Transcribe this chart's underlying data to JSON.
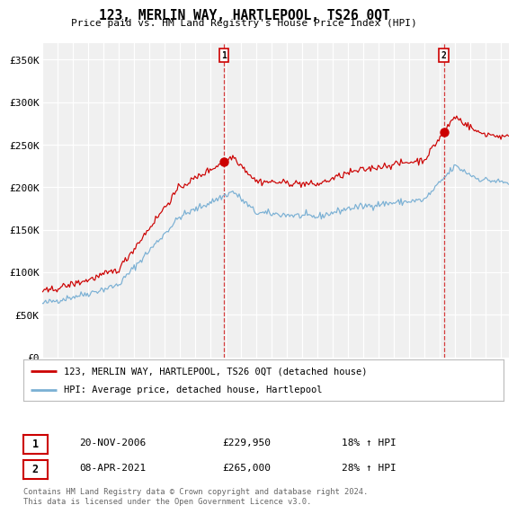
{
  "title": "123, MERLIN WAY, HARTLEPOOL, TS26 0QT",
  "subtitle": "Price paid vs. HM Land Registry's House Price Index (HPI)",
  "ylabel_ticks": [
    "£0",
    "£50K",
    "£100K",
    "£150K",
    "£200K",
    "£250K",
    "£300K",
    "£350K"
  ],
  "ytick_vals": [
    0,
    50000,
    100000,
    150000,
    200000,
    250000,
    300000,
    350000
  ],
  "ylim": [
    0,
    370000
  ],
  "xlim_start": 1995.0,
  "xlim_end": 2025.5,
  "legend_line1": "123, MERLIN WAY, HARTLEPOOL, TS26 0QT (detached house)",
  "legend_line2": "HPI: Average price, detached house, Hartlepool",
  "sale1_date": "20-NOV-2006",
  "sale1_price": "£229,950",
  "sale1_hpi": "18% ↑ HPI",
  "sale1_x": 2006.9,
  "sale1_y": 229950,
  "sale2_date": "08-APR-2021",
  "sale2_price": "£265,000",
  "sale2_hpi": "28% ↑ HPI",
  "sale2_x": 2021.27,
  "sale2_y": 265000,
  "red_color": "#cc0000",
  "blue_color": "#7ab0d4",
  "footer": "Contains HM Land Registry data © Crown copyright and database right 2024.\nThis data is licensed under the Open Government Licence v3.0.",
  "background_color": "#f0f0f0"
}
